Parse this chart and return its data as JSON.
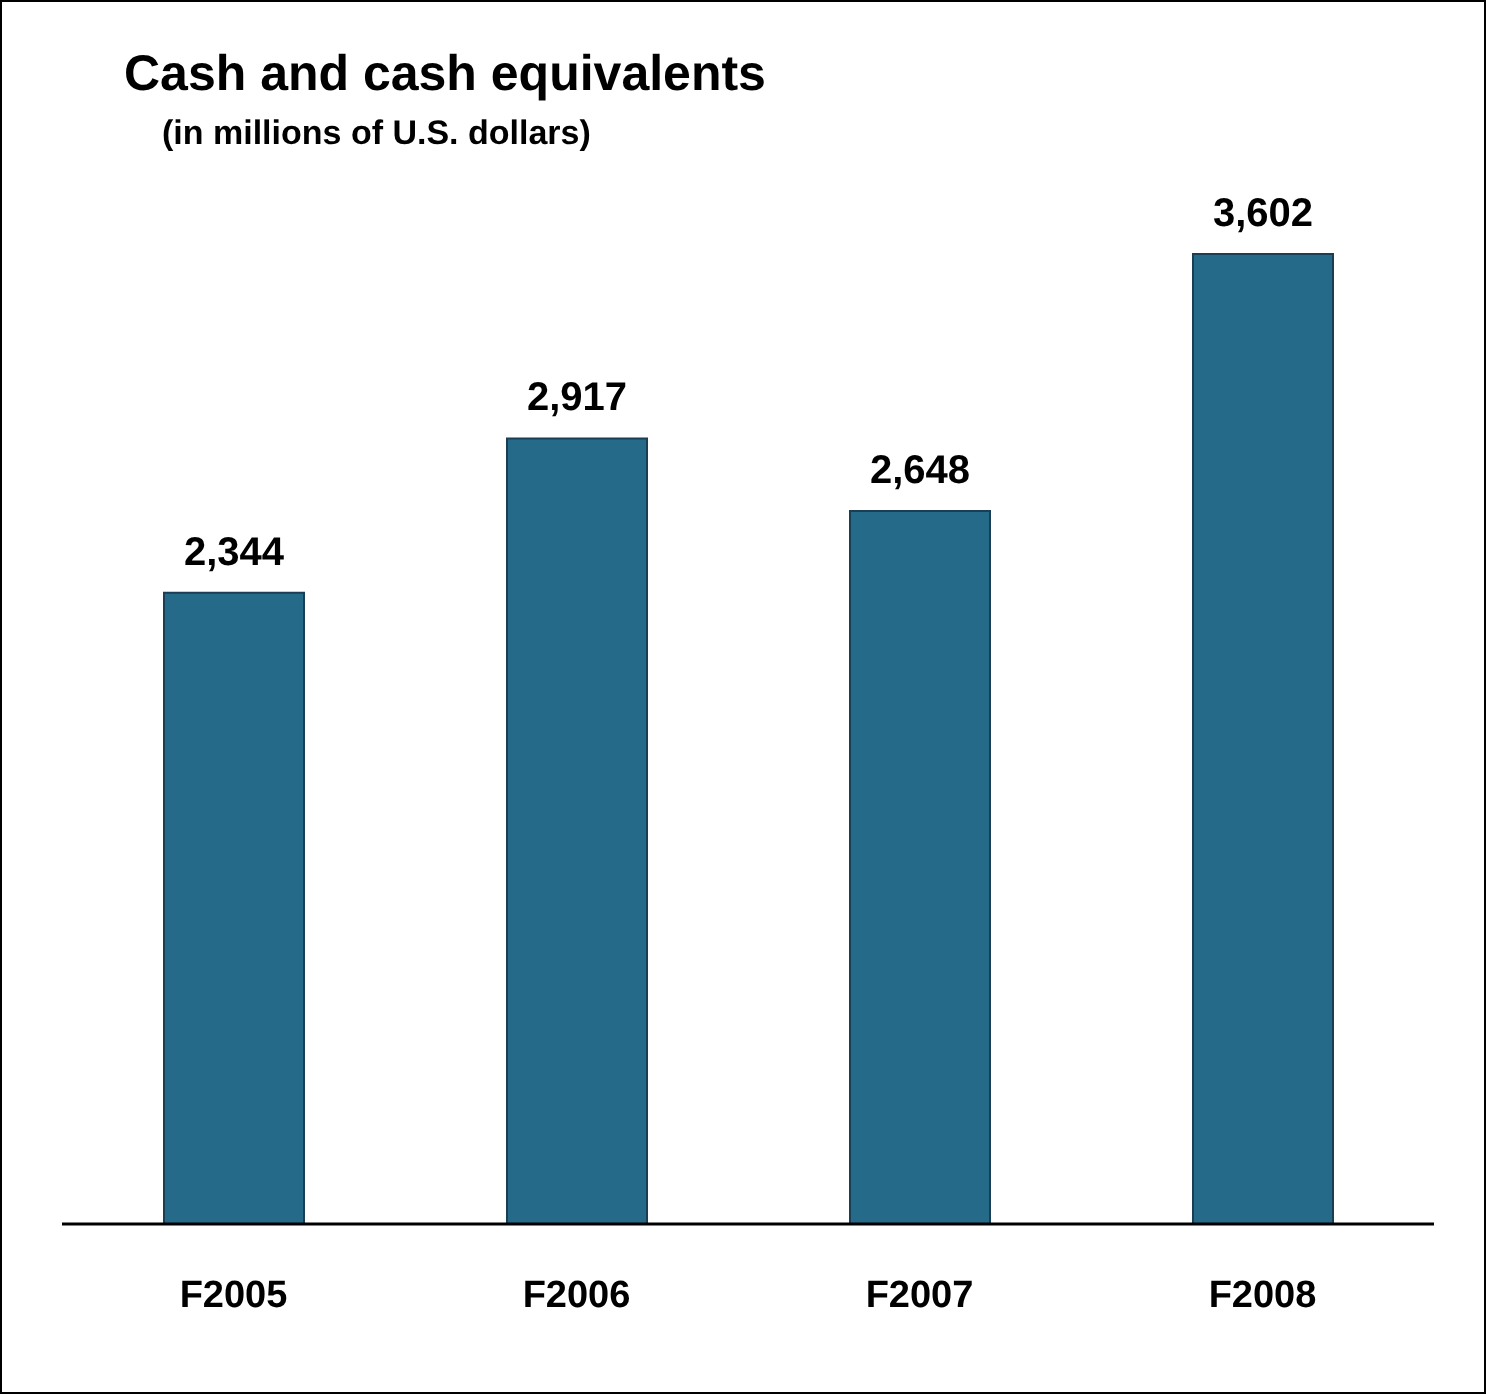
{
  "chart_data": {
    "type": "bar",
    "title": "Cash and cash equivalents",
    "subtitle": "(in millions of U.S. dollars)",
    "categories": [
      "F2005",
      "F2006",
      "F2007",
      "F2008"
    ],
    "values": [
      2344,
      2917,
      2648,
      3602
    ],
    "value_labels": [
      "2,344",
      "2,917",
      "2,648",
      "3,602"
    ],
    "color": "#266a8a",
    "legend": false,
    "grid": false
  }
}
